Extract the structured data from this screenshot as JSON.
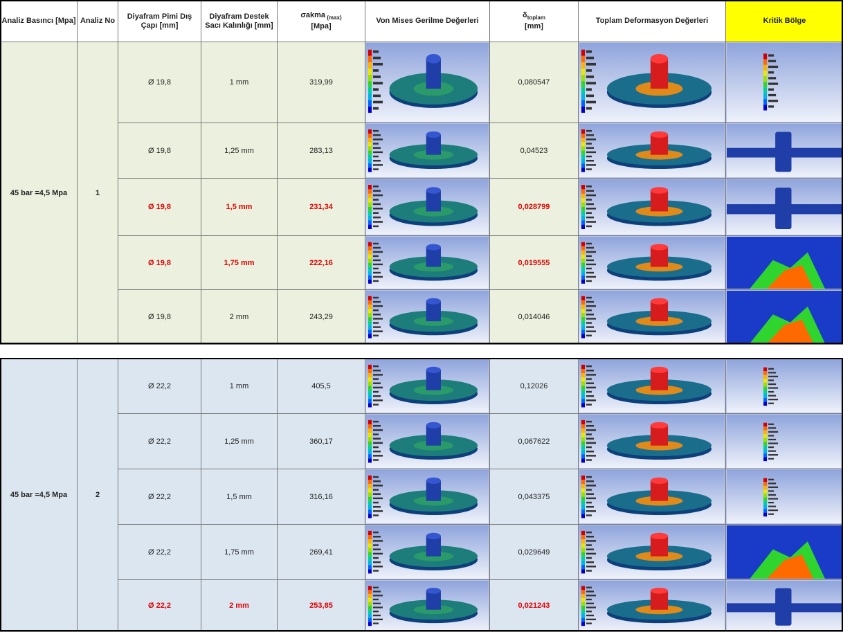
{
  "header": [
    "Analiz Basıncı [Mpa]",
    "Analiz No",
    "Diyafram Pimi Dış Çapı [mm]",
    "Diyafram Destek Sacı Kalınlığı [mm]",
    {
      "text": "σakma",
      "sub": " (max)",
      "unit": "[Mpa]"
    },
    "Von Mises Gerilme Değerleri",
    {
      "text": "δ",
      "sub": "toplam",
      "unit": "[mm]"
    },
    "Toplam Deformasyon Değerleri",
    "Kritik Bölge"
  ],
  "groups": [
    {
      "pressure": "45 bar =4,5 Mpa",
      "analysis_no": "1",
      "rows": [
        [
          "Ø 19,8",
          "1 mm",
          "319,99",
          "0,080547"
        ],
        [
          "Ø 19,8",
          "1,25 mm",
          "283,13",
          "0,04523"
        ],
        [
          "Ø 19,8",
          "1,5 mm",
          "231,34",
          "0,028799"
        ],
        [
          "Ø 19,8",
          "1,75 mm",
          "222,16",
          "0,019555"
        ],
        [
          "Ø 19,8",
          "2 mm",
          "243,29",
          "0,014046"
        ]
      ]
    },
    {
      "pressure": "45 bar =4,5 Mpa",
      "analysis_no": "2",
      "rows": [
        [
          "Ø 22,2",
          "1 mm",
          "405,5",
          "0,12026"
        ],
        [
          "Ø 22,2",
          "1,25 mm",
          "360,17",
          "0,067622"
        ],
        [
          "Ø 22,2",
          "1,5 mm",
          "316,16",
          "0,043375"
        ],
        [
          "Ø 22,2",
          "1,75 mm",
          "269,41",
          "0,029649"
        ],
        [
          "Ø 22,2",
          "2 mm",
          "253,85",
          "0,021243"
        ]
      ]
    }
  ]
}
